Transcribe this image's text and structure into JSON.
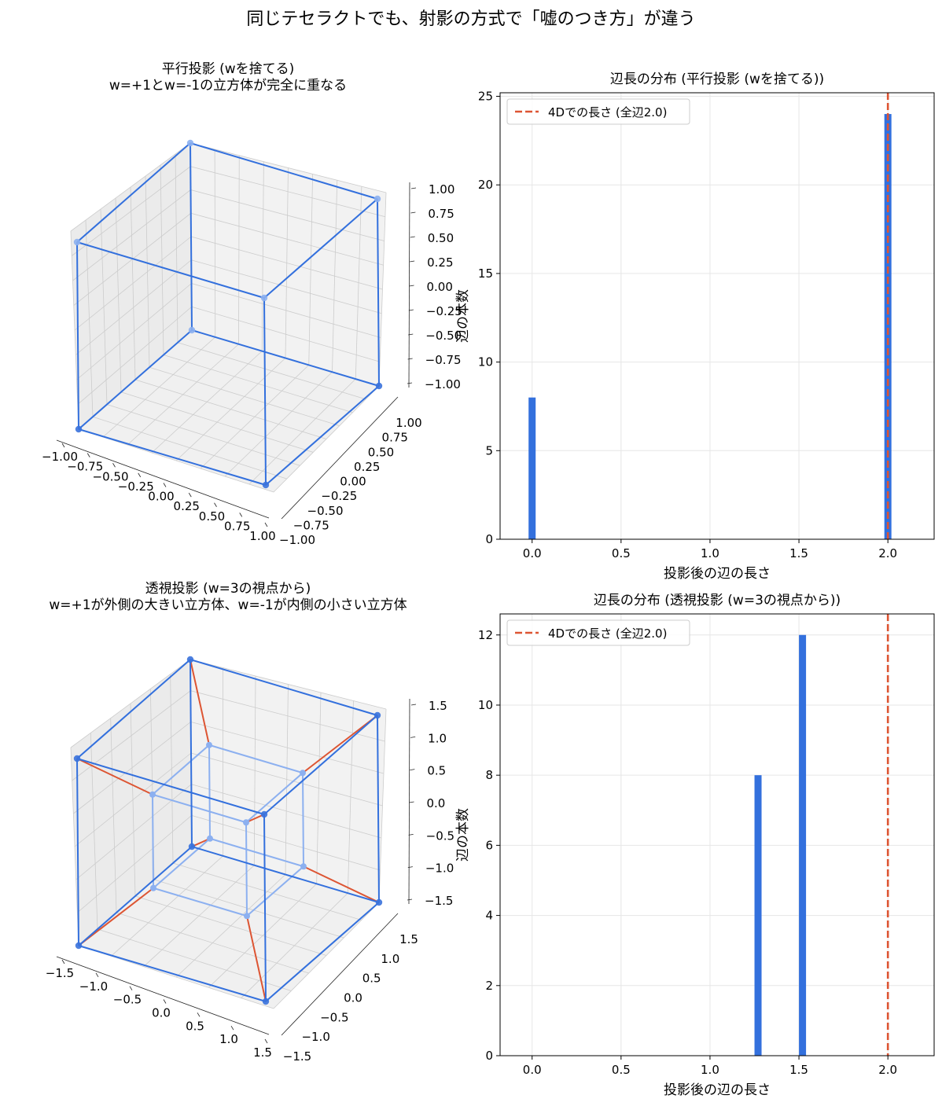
{
  "figure": {
    "suptitle": "同じテセラクトでも、射影の方式で「嘘のつき方」が違う"
  },
  "colors": {
    "outer_edge": "#3370dd",
    "inner_edge": "#8cb0f0",
    "connector_edge": "#dd5533",
    "outer_vertex": "#3a72dc",
    "inner_vertex": "#8cb0f0",
    "bar": "#3370dd",
    "ref_line": "#dd5533",
    "pane": "#ebebeb",
    "grid": "#cccccc"
  },
  "chart_data": [
    {
      "type": "3d-wireframe",
      "title_line1": "平行投影 (wを捨てる)",
      "title_line2": "w=+1とw=-1の立方体が完全に重なる",
      "x_ticks": [
        "−1.00",
        "−0.75",
        "−0.50",
        "−0.25",
        "0.00",
        "0.25",
        "0.50",
        "0.75",
        "1.00"
      ],
      "y_ticks": [
        "−1.00",
        "−0.75",
        "−0.50",
        "−0.25",
        "0.00",
        "0.25",
        "0.50",
        "0.75",
        "1.00"
      ],
      "z_ticks": [
        "−1.00",
        "−0.75",
        "−0.50",
        "−0.25",
        "0.00",
        "0.25",
        "0.50",
        "0.75",
        "1.00"
      ],
      "tick_values": [
        -1,
        -0.75,
        -0.5,
        -0.25,
        0,
        0.25,
        0.5,
        0.75,
        1
      ],
      "axis_range": [
        -1,
        1
      ],
      "projection": "parallel",
      "outer_half_size": 1.0,
      "inner_half_size": 1.0
    },
    {
      "type": "histogram",
      "title": "辺長の分布 (平行投影 (wを捨てる))",
      "xlabel": "投影後の辺の長さ",
      "ylabel": "辺の本数",
      "bins": [
        {
          "x": 0.0,
          "count": 8
        },
        {
          "x": 2.0,
          "count": 24
        }
      ],
      "xlim": [
        -0.18,
        2.26
      ],
      "ylim": [
        0,
        25.2
      ],
      "x_ticks": [
        "0.0",
        "0.5",
        "1.0",
        "1.5",
        "2.0"
      ],
      "x_tick_values": [
        0,
        0.5,
        1,
        1.5,
        2
      ],
      "y_ticks": [
        "0",
        "5",
        "10",
        "15",
        "20",
        "25"
      ],
      "y_tick_values": [
        0,
        5,
        10,
        15,
        20,
        25
      ],
      "reference_line": 2.0,
      "legend_label": "4Dでの長さ (全辺2.0)",
      "legend_position": "upper left",
      "grid": true
    },
    {
      "type": "3d-wireframe",
      "title_line1": "透視投影 (w=3の視点から)",
      "title_line2": "w=+1が外側の大きい立方体、w=-1が内側の小さい立方体",
      "x_ticks": [
        "−1.5",
        "−1.0",
        "−0.5",
        "0.0",
        "0.5",
        "1.0",
        "1.5"
      ],
      "y_ticks": [
        "−1.5",
        "−1.0",
        "−0.5",
        "0.0",
        "0.5",
        "1.0",
        "1.5"
      ],
      "z_ticks": [
        "−1.5",
        "−1.0",
        "−0.5",
        "0.0",
        "0.5",
        "1.0",
        "1.5"
      ],
      "tick_values": [
        -1.5,
        -1,
        -0.5,
        0,
        0.5,
        1,
        1.5
      ],
      "axis_range": [
        -1.5,
        1.5
      ],
      "projection": "perspective",
      "outer_half_size": 1.5,
      "inner_half_size": 0.75
    },
    {
      "type": "histogram",
      "title": "辺長の分布 (透視投影 (w=3の視点から))",
      "xlabel": "投影後の辺の長さ",
      "ylabel": "辺の本数",
      "bins": [
        {
          "x": 1.27,
          "count": 8
        },
        {
          "x": 1.52,
          "count": 12
        }
      ],
      "xlim": [
        -0.18,
        2.26
      ],
      "ylim": [
        0,
        12.6
      ],
      "x_ticks": [
        "0.0",
        "0.5",
        "1.0",
        "1.5",
        "2.0"
      ],
      "x_tick_values": [
        0,
        0.5,
        1,
        1.5,
        2
      ],
      "y_ticks": [
        "0",
        "2",
        "4",
        "6",
        "8",
        "10",
        "12"
      ],
      "y_tick_values": [
        0,
        2,
        4,
        6,
        8,
        10,
        12
      ],
      "reference_line": 2.0,
      "legend_label": "4Dでの長さ (全辺2.0)",
      "legend_position": "upper left",
      "grid": true
    }
  ]
}
